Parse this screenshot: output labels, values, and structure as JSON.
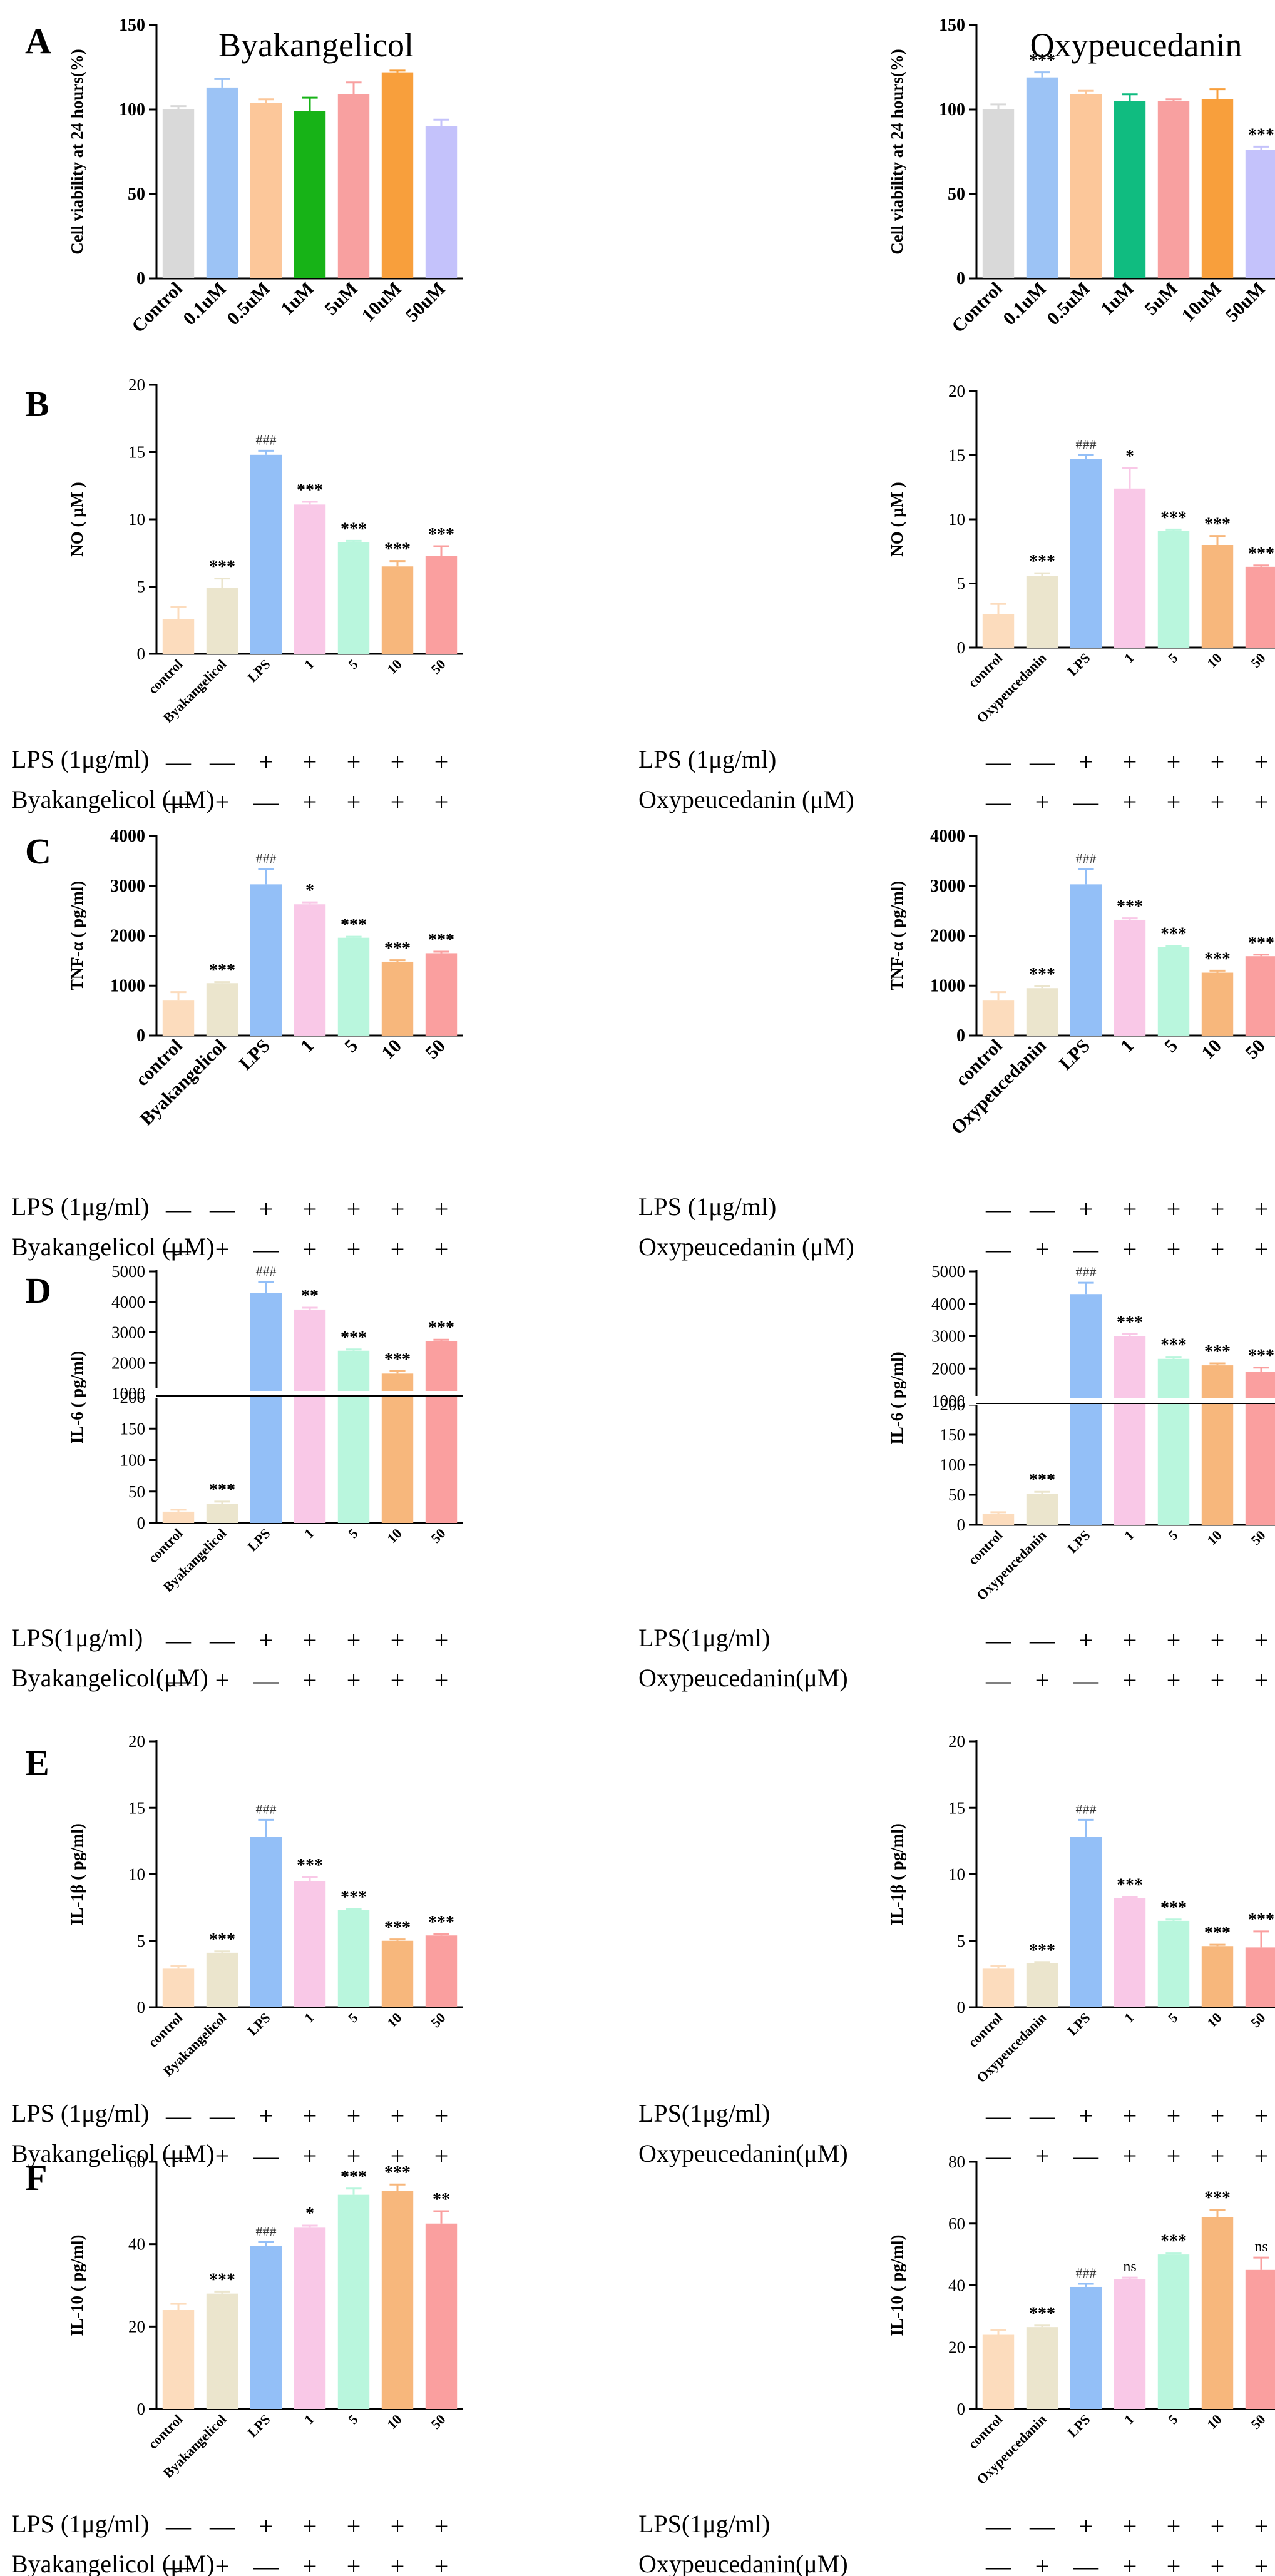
{
  "colors": {
    "control": "#d9d9d9",
    "c01": "#9cc3f5",
    "c05": "#fcc79a",
    "c1_byak": "#17b317",
    "c1_oxy": "#10bc80",
    "c5": "#f8a0a0",
    "c10": "#f89f3c",
    "c50": "#c4c2fb",
    "ctrl2": "#fcdcbd",
    "comp": "#ebe5cd",
    "lps": "#93bff7",
    "d1": "#f9c8e7",
    "d5": "#b9f6dd",
    "d10": "#f7b77c",
    "d50": "#fa9f9f",
    "axis": "#000000",
    "error": "#000000"
  },
  "panel_labels": [
    "A",
    "B",
    "C",
    "D",
    "E",
    "F"
  ],
  "treatments": {
    "lps_label": "LPS (1μg/ml)",
    "lps_label_nospace": "LPS(1μg/ml)",
    "byak_label": "Byakangelicol (μM)",
    "byak_label_nospace": "Byakangelicol(μM)",
    "oxy_label": "Oxypeucedanin (μM)",
    "oxy_label_nospace": "Oxypeucedanin(μM)",
    "lps_signs": [
      "—",
      "—",
      "+",
      "+",
      "+",
      "+",
      "+"
    ],
    "compound_signs": [
      "—",
      "+",
      "—",
      "+",
      "+",
      "+",
      "+"
    ]
  },
  "chart_data": [
    {
      "id": "A-byak",
      "type": "bar",
      "title": "Byakangelicol",
      "ylabel": "Cell viability at 24 hours(%)",
      "xlabel": "",
      "categories": [
        "Control",
        "0.1uM",
        "0.5uM",
        "1uM",
        "5uM",
        "10uM",
        "50uM"
      ],
      "values": [
        100,
        113,
        104,
        99,
        109,
        122,
        90
      ],
      "errors": [
        2,
        5,
        2,
        8,
        7,
        1,
        4
      ],
      "annotations": [
        "",
        "",
        "",
        "",
        "",
        "",
        ""
      ],
      "ylim": [
        0,
        150
      ],
      "yticks": [
        0,
        50,
        100,
        150
      ]
    },
    {
      "id": "A-oxy",
      "type": "bar",
      "title": "Oxypeucedanin",
      "ylabel": "Cell viability at 24 hours(%)",
      "xlabel": "",
      "categories": [
        "Control",
        "0.1uM",
        "0.5uM",
        "1uM",
        "5uM",
        "10uM",
        "50uM"
      ],
      "values": [
        100,
        119,
        109,
        105,
        105,
        106,
        76
      ],
      "errors": [
        3,
        3,
        2,
        4,
        1,
        6,
        2
      ],
      "annotations": [
        "",
        "***",
        "",
        "",
        "",
        "",
        "***"
      ],
      "ylim": [
        0,
        150
      ],
      "yticks": [
        0,
        50,
        100,
        150
      ]
    },
    {
      "id": "B-byak",
      "type": "bar",
      "title": "",
      "ylabel": "NO ( μM )",
      "xlabel": "",
      "categories": [
        "control",
        "Byakangelicol",
        "LPS",
        "1",
        "5",
        "10",
        "50"
      ],
      "values": [
        2.6,
        4.9,
        14.8,
        11.1,
        8.3,
        6.5,
        7.3
      ],
      "errors": [
        0.9,
        0.7,
        0.3,
        0.2,
        0.1,
        0.4,
        0.7
      ],
      "annotations": [
        "",
        "***",
        "###",
        "***",
        "***",
        "***",
        "***"
      ],
      "ylim": [
        0,
        20
      ],
      "yticks": [
        0,
        5,
        10,
        15,
        20
      ]
    },
    {
      "id": "B-oxy",
      "type": "bar",
      "title": "",
      "ylabel": "NO ( μM )",
      "xlabel": "",
      "categories": [
        "control",
        "Oxypeucedanin",
        "LPS",
        "1",
        "5",
        "10",
        "50"
      ],
      "values": [
        2.6,
        5.6,
        14.7,
        12.4,
        9.1,
        8.0,
        6.3
      ],
      "errors": [
        0.8,
        0.2,
        0.3,
        1.6,
        0.1,
        0.7,
        0.1
      ],
      "annotations": [
        "",
        "***",
        "###",
        "*",
        "***",
        "***",
        "***"
      ],
      "ylim": [
        0,
        20
      ],
      "yticks": [
        0,
        5,
        10,
        15,
        20
      ]
    },
    {
      "id": "C-byak",
      "type": "bar",
      "title": "",
      "ylabel": "TNF-α ( pg/ml)",
      "xlabel": "",
      "categories": [
        "control",
        "Byakangelicol",
        "LPS",
        "1",
        "5",
        "10",
        "50"
      ],
      "values": [
        700,
        1050,
        3030,
        2630,
        1960,
        1480,
        1650
      ],
      "errors": [
        170,
        20,
        300,
        40,
        20,
        30,
        30
      ],
      "annotations": [
        "",
        "***",
        "###",
        "*",
        "***",
        "***",
        "***"
      ],
      "ylim": [
        0,
        4000
      ],
      "yticks": [
        0,
        1000,
        2000,
        3000,
        4000
      ]
    },
    {
      "id": "C-oxy",
      "type": "bar",
      "title": "",
      "ylabel": "TNF-α ( pg/ml)",
      "xlabel": "",
      "categories": [
        "control",
        "Oxypeucedanin",
        "LPS",
        "1",
        "5",
        "10",
        "50"
      ],
      "values": [
        700,
        950,
        3030,
        2320,
        1780,
        1260,
        1590
      ],
      "errors": [
        170,
        40,
        300,
        30,
        20,
        40,
        30
      ],
      "annotations": [
        "",
        "***",
        "###",
        "***",
        "***",
        "***",
        "***"
      ],
      "ylim": [
        0,
        4000
      ],
      "yticks": [
        0,
        1000,
        2000,
        3000,
        4000
      ]
    },
    {
      "id": "D-byak",
      "type": "bar",
      "title": "",
      "axis_break": true,
      "ylabel": "IL-6 ( pg/ml)",
      "xlabel": "",
      "categories": [
        "control",
        "Byakangelicol",
        "LPS",
        "1",
        "5",
        "10",
        "50"
      ],
      "values": [
        18,
        30,
        4300,
        3750,
        2400,
        1650,
        2720
      ],
      "errors": [
        3,
        4,
        350,
        60,
        40,
        80,
        40
      ],
      "annotations": [
        "",
        "***",
        "###",
        "**",
        "***",
        "***",
        "***"
      ],
      "ylim_low": [
        0,
        200
      ],
      "yticks_low": [
        0,
        50,
        100,
        150,
        200
      ],
      "ylim_high": [
        1000,
        5000
      ],
      "yticks_high": [
        1000,
        2000,
        3000,
        4000,
        5000
      ]
    },
    {
      "id": "D-oxy",
      "type": "bar",
      "title": "",
      "axis_break": true,
      "ylabel": "IL-6 ( pg/ml)",
      "xlabel": "",
      "categories": [
        "control",
        "Oxypeucedanin",
        "LPS",
        "1",
        "5",
        "10",
        "50"
      ],
      "values": [
        18,
        52,
        4300,
        3000,
        2300,
        2100,
        1900
      ],
      "errors": [
        3,
        3,
        350,
        60,
        60,
        60,
        130
      ],
      "annotations": [
        "",
        "***",
        "###",
        "***",
        "***",
        "***",
        "***"
      ],
      "ylim_low": [
        0,
        200
      ],
      "yticks_low": [
        0,
        50,
        100,
        150,
        200
      ],
      "ylim_high": [
        1000,
        5000
      ],
      "yticks_high": [
        1000,
        2000,
        3000,
        4000,
        5000
      ]
    },
    {
      "id": "E-byak",
      "type": "bar",
      "title": "",
      "ylabel": "IL-1β ( pg/ml)",
      "xlabel": "",
      "categories": [
        "control",
        "Byakangelicol",
        "LPS",
        "1",
        "5",
        "10",
        "50"
      ],
      "values": [
        2.9,
        4.1,
        12.8,
        9.5,
        7.3,
        5.0,
        5.4
      ],
      "errors": [
        0.2,
        0.1,
        1.3,
        0.3,
        0.1,
        0.1,
        0.1
      ],
      "annotations": [
        "",
        "***",
        "###",
        "***",
        "***",
        "***",
        "***"
      ],
      "ylim": [
        0,
        20
      ],
      "yticks": [
        0,
        5,
        10,
        15,
        20
      ]
    },
    {
      "id": "E-oxy",
      "type": "bar",
      "title": "",
      "ylabel": "IL-1β ( pg/ml)",
      "xlabel": "",
      "categories": [
        "control",
        "Oxypeucedanin",
        "LPS",
        "1",
        "5",
        "10",
        "50"
      ],
      "values": [
        2.9,
        3.3,
        12.8,
        8.2,
        6.5,
        4.6,
        4.5
      ],
      "errors": [
        0.2,
        0.1,
        1.3,
        0.1,
        0.1,
        0.1,
        1.2
      ],
      "annotations": [
        "",
        "***",
        "###",
        "***",
        "***",
        "***",
        "***"
      ],
      "ylim": [
        0,
        20
      ],
      "yticks": [
        0,
        5,
        10,
        15,
        20
      ]
    },
    {
      "id": "F-byak",
      "type": "bar",
      "title": "",
      "ylabel": "IL-10 ( pg/ml)",
      "xlabel": "",
      "categories": [
        "control",
        "Byakangelicol",
        "LPS",
        "1",
        "5",
        "10",
        "50"
      ],
      "values": [
        24,
        28,
        39.5,
        44,
        52,
        53,
        45
      ],
      "errors": [
        1.5,
        0.5,
        1,
        0.5,
        1.5,
        1.5,
        3
      ],
      "annotations": [
        "",
        "***",
        "###",
        "*",
        "***",
        "***",
        "**"
      ],
      "ylim": [
        0,
        60
      ],
      "yticks": [
        0,
        20,
        40,
        60
      ]
    },
    {
      "id": "F-oxy",
      "type": "bar",
      "title": "",
      "ylabel": "IL-10 ( pg/ml)",
      "xlabel": "",
      "categories": [
        "control",
        "Oxypeucedanin",
        "LPS",
        "1",
        "5",
        "10",
        "50"
      ],
      "values": [
        24,
        26.5,
        39.5,
        42,
        50,
        62,
        45
      ],
      "errors": [
        1.5,
        0.5,
        1,
        0.5,
        0.5,
        2.5,
        4
      ],
      "annotations": [
        "",
        "***",
        "###",
        "ns",
        "***",
        "***",
        "ns"
      ],
      "ylim": [
        0,
        80
      ],
      "yticks": [
        0,
        20,
        40,
        60,
        80
      ]
    }
  ]
}
